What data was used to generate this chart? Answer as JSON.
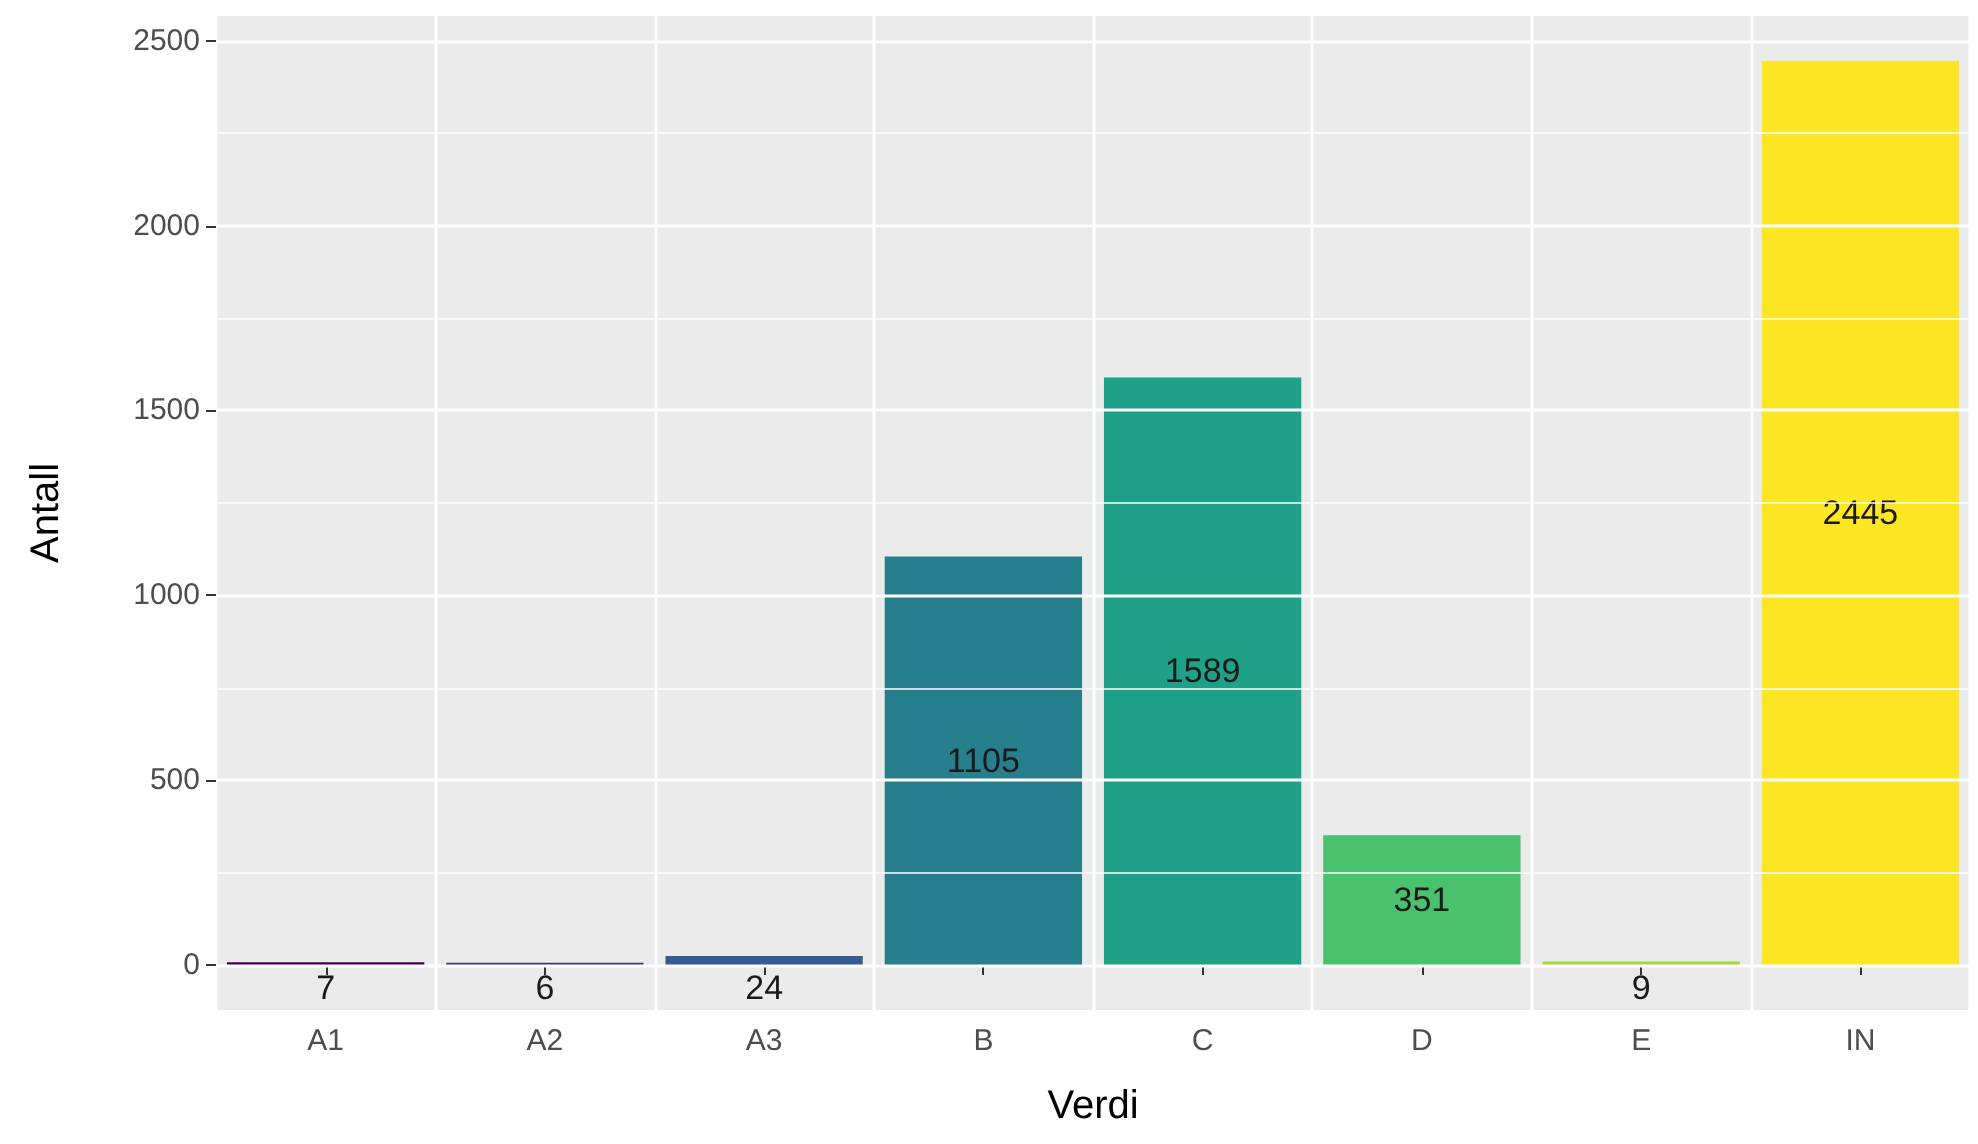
{
  "chart_data": {
    "type": "bar",
    "xlabel": "Verdi",
    "ylabel": "Antall",
    "categories": [
      "A1",
      "A2",
      "A3",
      "B",
      "C",
      "D",
      "E",
      "IN"
    ],
    "values": [
      7,
      6,
      24,
      1105,
      1589,
      351,
      9,
      2445
    ],
    "colors": [
      "#440154",
      "#46337e",
      "#365c8d",
      "#277f8e",
      "#1fa187",
      "#4ac16d",
      "#9fda3a",
      "#fde725"
    ],
    "ylim": [
      -122,
      2567
    ],
    "yticks": [
      0,
      500,
      1000,
      1500,
      2000,
      2500
    ],
    "grid": true,
    "data_labels": true
  }
}
